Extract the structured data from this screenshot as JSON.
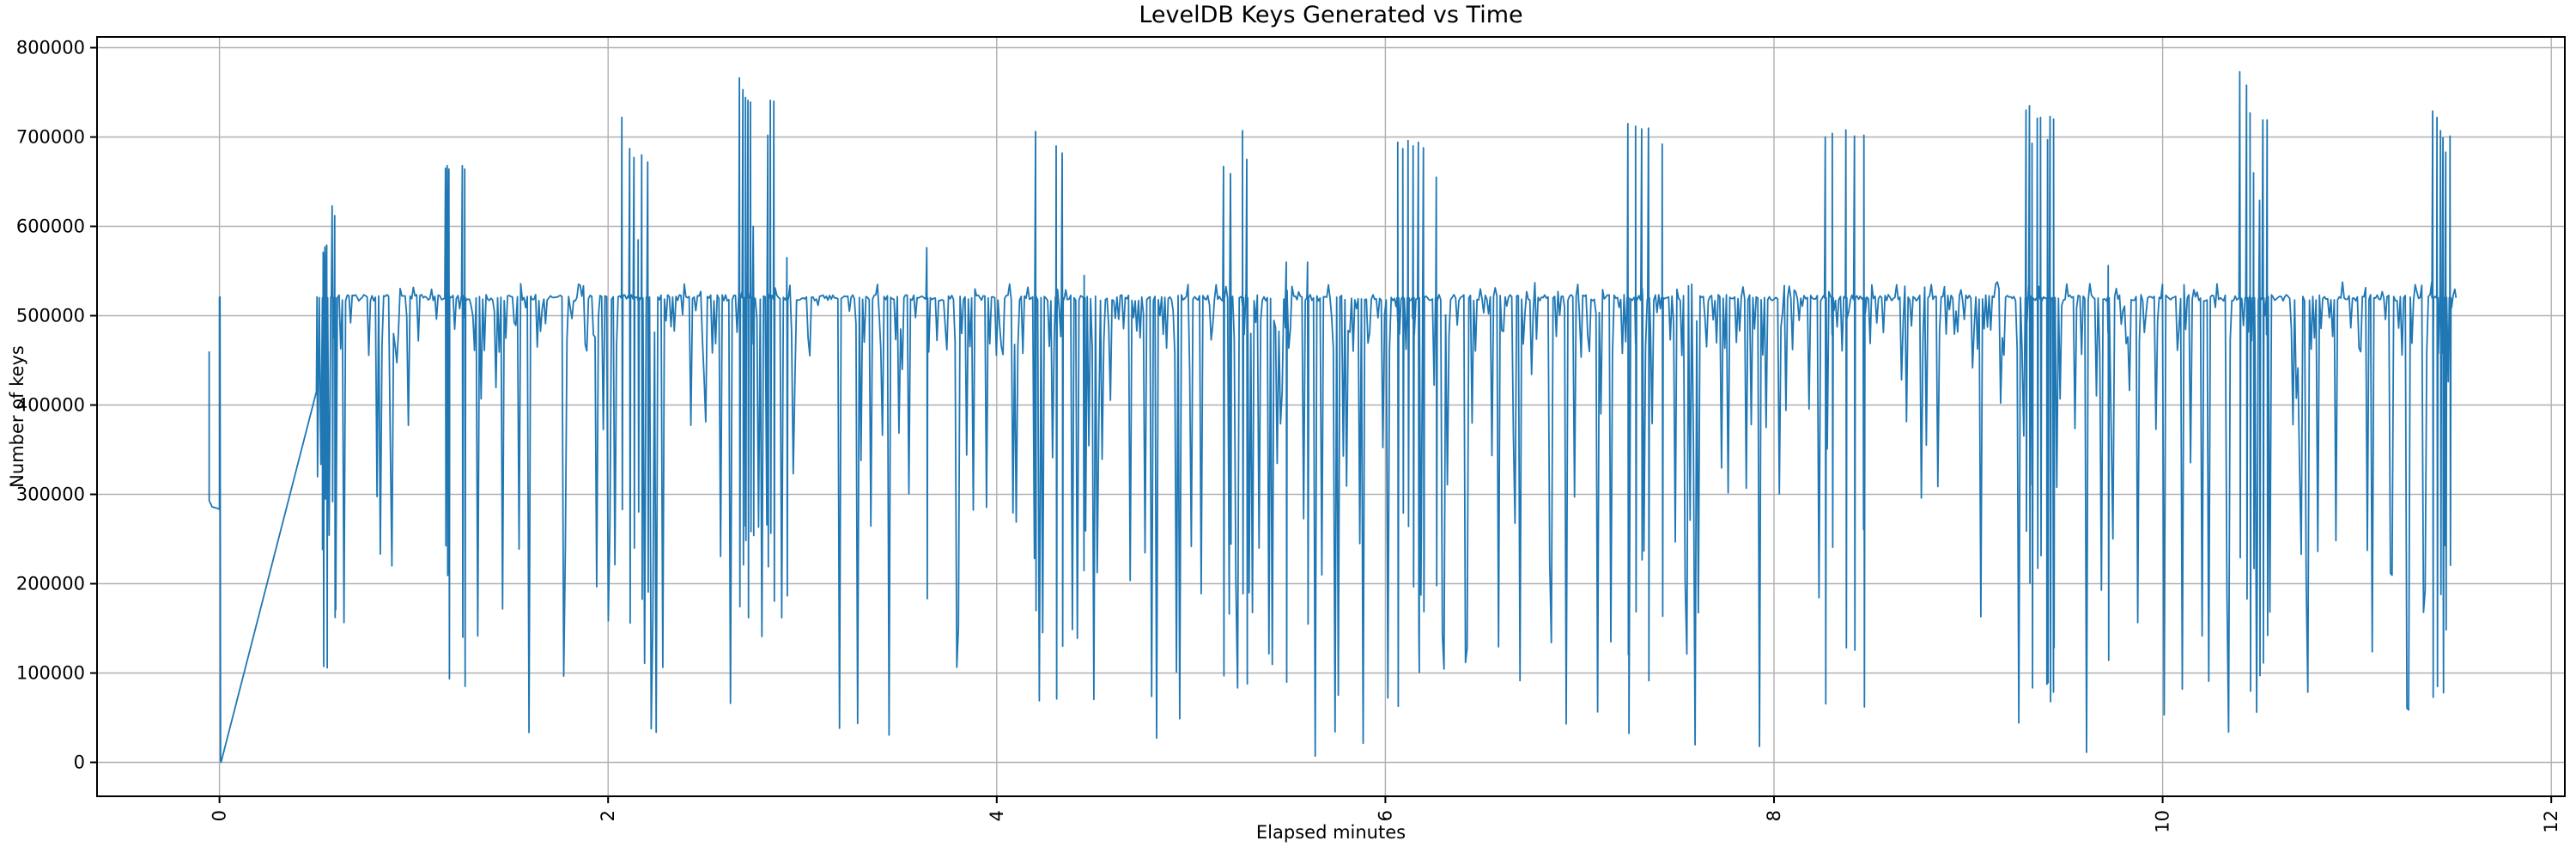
{
  "chart_data": {
    "type": "line",
    "title": "LevelDB Keys Generated vs Time",
    "xlabel": "Elapsed minutes",
    "ylabel": "Number of keys",
    "xlim": [
      -0.63,
      12.07
    ],
    "ylim": [
      -38000,
      812000
    ],
    "xticks": [
      0,
      2,
      4,
      6,
      8,
      10,
      12
    ],
    "xtick_labels": [
      "0",
      "2",
      "4",
      "6",
      "8",
      "10",
      "12"
    ],
    "xtick_rotation_deg": 90,
    "yticks": [
      0,
      100000,
      200000,
      300000,
      400000,
      500000,
      600000,
      700000,
      800000
    ],
    "ytick_labels": [
      "0",
      "100000",
      "200000",
      "300000",
      "400000",
      "500000",
      "600000",
      "700000",
      "800000"
    ],
    "grid": true,
    "grid_color": "#b0b0b0",
    "axes_color": "#000000",
    "background_color": "#ffffff",
    "legend": "none",
    "series": [
      {
        "name": "keys",
        "color": "#1f77b4",
        "line_width": 1.8,
        "intro_points": [
          [
            -0.053,
            460000
          ],
          [
            -0.053,
            293000
          ],
          [
            -0.038,
            286000
          ],
          [
            -0.005,
            284000
          ],
          [
            0.0,
            283000
          ],
          [
            0.0,
            520000
          ],
          [
            0.003,
            521000
          ],
          [
            0.006,
            2000
          ],
          [
            0.008,
            0
          ]
        ],
        "ramp": {
          "from": [
            0.008,
            0
          ],
          "to": [
            0.499,
            415000
          ]
        },
        "noise": {
          "t_start": 0.505,
          "t_end": 11.51,
          "step": 0.0085,
          "baseline": 520000,
          "baseline_jitter": 3500,
          "bump_probability": 0.05,
          "bump_range": [
            526000,
            538000
          ],
          "dip_probability": 0.35,
          "shallow_dip_share": 0.55,
          "shallow_dip_range": [
            455000,
            512000
          ],
          "deep_dip_range": [
            5000,
            455000
          ],
          "seed": 7
        },
        "spikes": [
          [
            0.534,
            571000
          ],
          [
            0.543,
            577000
          ],
          [
            0.552,
            579000
          ],
          [
            0.58,
            623000
          ],
          [
            0.593,
            612000
          ],
          [
            1.163,
            665000
          ],
          [
            1.172,
            668000
          ],
          [
            1.181,
            664000
          ],
          [
            1.25,
            668000
          ],
          [
            1.262,
            664000
          ],
          [
            2.071,
            722000
          ],
          [
            2.111,
            687000
          ],
          [
            2.133,
            677000
          ],
          [
            2.155,
            585000
          ],
          [
            2.173,
            680000
          ],
          [
            2.204,
            672000
          ],
          [
            2.676,
            766000
          ],
          [
            2.694,
            753000
          ],
          [
            2.707,
            744000
          ],
          [
            2.72,
            741000
          ],
          [
            2.733,
            739000
          ],
          [
            2.747,
            600000
          ],
          [
            2.822,
            702000
          ],
          [
            2.835,
            741000
          ],
          [
            2.853,
            740000
          ],
          [
            2.92,
            565000
          ],
          [
            3.64,
            576000
          ],
          [
            4.2,
            706000
          ],
          [
            4.306,
            690000
          ],
          [
            4.337,
            682000
          ],
          [
            4.45,
            545000
          ],
          [
            5.167,
            667000
          ],
          [
            5.203,
            659000
          ],
          [
            5.265,
            707000
          ],
          [
            5.287,
            675000
          ],
          [
            5.49,
            560000
          ],
          [
            5.6,
            560000
          ],
          [
            6.064,
            694000
          ],
          [
            6.09,
            687000
          ],
          [
            6.117,
            696000
          ],
          [
            6.143,
            690000
          ],
          [
            6.17,
            694000
          ],
          [
            6.196,
            688000
          ],
          [
            6.262,
            655000
          ],
          [
            7.248,
            715000
          ],
          [
            7.288,
            712000
          ],
          [
            7.319,
            709000
          ],
          [
            7.354,
            710000
          ],
          [
            7.425,
            692000
          ],
          [
            8.264,
            700000
          ],
          [
            8.3,
            704000
          ],
          [
            8.37,
            708000
          ],
          [
            8.414,
            701000
          ],
          [
            8.463,
            702000
          ],
          [
            9.297,
            730000
          ],
          [
            9.315,
            735000
          ],
          [
            9.328,
            693000
          ],
          [
            9.355,
            721000
          ],
          [
            9.372,
            722000
          ],
          [
            9.408,
            697000
          ],
          [
            9.421,
            723000
          ],
          [
            9.439,
            720000
          ],
          [
            9.72,
            556000
          ],
          [
            10.397,
            773000
          ],
          [
            10.432,
            758000
          ],
          [
            10.45,
            727000
          ],
          [
            10.468,
            660000
          ],
          [
            10.499,
            629000
          ],
          [
            10.516,
            719000
          ],
          [
            10.538,
            719000
          ],
          [
            11.39,
            729000
          ],
          [
            11.412,
            722000
          ],
          [
            11.43,
            707000
          ],
          [
            11.443,
            699000
          ],
          [
            11.457,
            683000
          ],
          [
            11.479,
            701000
          ]
        ]
      }
    ]
  }
}
